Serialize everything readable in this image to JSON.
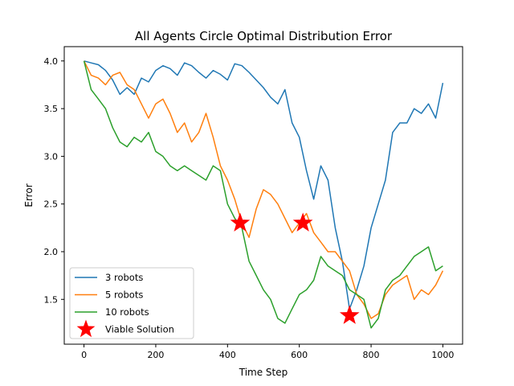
{
  "chart_data": {
    "type": "line",
    "title": "All Agents Circle Optimal Distribution Error",
    "xlabel": "Time Step",
    "ylabel": "Error",
    "xlim": [
      -55,
      1055
    ],
    "ylim": [
      1.03,
      4.15
    ],
    "x_ticks": [
      0,
      200,
      400,
      600,
      800,
      1000
    ],
    "y_ticks": [
      1.5,
      2.0,
      2.5,
      3.0,
      3.5,
      4.0
    ],
    "x_tick_labels": [
      "0",
      "200",
      "400",
      "600",
      "800",
      "1000"
    ],
    "y_tick_labels": [
      "1.5",
      "2.0",
      "2.5",
      "3.0",
      "3.5",
      "4.0"
    ],
    "grid": false,
    "legend_position": "lower-left",
    "series": [
      {
        "name": "3 robots",
        "color": "#1f77b4",
        "x": [
          0,
          20,
          40,
          60,
          80,
          100,
          120,
          140,
          160,
          180,
          200,
          220,
          240,
          260,
          280,
          300,
          320,
          340,
          360,
          380,
          400,
          420,
          440,
          460,
          480,
          500,
          520,
          540,
          560,
          580,
          600,
          620,
          640,
          660,
          680,
          700,
          720,
          740,
          760,
          780,
          800,
          820,
          840,
          860,
          880,
          900,
          920,
          940,
          960,
          980,
          1000
        ],
        "y": [
          4.0,
          3.98,
          3.96,
          3.9,
          3.8,
          3.65,
          3.72,
          3.65,
          3.82,
          3.78,
          3.9,
          3.95,
          3.92,
          3.85,
          3.98,
          3.95,
          3.88,
          3.82,
          3.9,
          3.86,
          3.8,
          3.97,
          3.95,
          3.88,
          3.8,
          3.72,
          3.62,
          3.55,
          3.7,
          3.35,
          3.2,
          2.85,
          2.55,
          2.9,
          2.75,
          2.25,
          1.9,
          1.4,
          1.6,
          1.85,
          2.25,
          2.5,
          2.75,
          3.25,
          3.35,
          3.35,
          3.5,
          3.45,
          3.55,
          3.4,
          3.77
        ]
      },
      {
        "name": "5 robots",
        "color": "#ff7f0e",
        "x": [
          0,
          20,
          40,
          60,
          80,
          100,
          120,
          140,
          160,
          180,
          200,
          220,
          240,
          260,
          280,
          300,
          320,
          340,
          360,
          380,
          400,
          420,
          440,
          460,
          480,
          500,
          520,
          540,
          560,
          580,
          600,
          620,
          640,
          660,
          680,
          700,
          720,
          740,
          760,
          780,
          800,
          820,
          840,
          860,
          880,
          900,
          920,
          940,
          960,
          980,
          1000
        ],
        "y": [
          4.0,
          3.85,
          3.82,
          3.75,
          3.85,
          3.88,
          3.75,
          3.7,
          3.55,
          3.4,
          3.55,
          3.6,
          3.45,
          3.25,
          3.35,
          3.15,
          3.25,
          3.45,
          3.2,
          2.9,
          2.75,
          2.55,
          2.3,
          2.15,
          2.45,
          2.65,
          2.6,
          2.5,
          2.35,
          2.2,
          2.3,
          2.4,
          2.2,
          2.1,
          2.0,
          2.0,
          1.9,
          1.8,
          1.55,
          1.45,
          1.3,
          1.35,
          1.55,
          1.65,
          1.7,
          1.75,
          1.5,
          1.6,
          1.55,
          1.65,
          1.8
        ]
      },
      {
        "name": "10 robots",
        "color": "#2ca02c",
        "x": [
          0,
          20,
          40,
          60,
          80,
          100,
          120,
          140,
          160,
          180,
          200,
          220,
          240,
          260,
          280,
          300,
          320,
          340,
          360,
          380,
          400,
          420,
          440,
          460,
          480,
          500,
          520,
          540,
          560,
          580,
          600,
          620,
          640,
          660,
          680,
          700,
          720,
          740,
          760,
          780,
          800,
          820,
          840,
          860,
          880,
          900,
          920,
          940,
          960,
          980,
          1000
        ],
        "y": [
          4.0,
          3.7,
          3.6,
          3.5,
          3.3,
          3.15,
          3.1,
          3.2,
          3.15,
          3.25,
          3.05,
          3.0,
          2.9,
          2.85,
          2.9,
          2.85,
          2.8,
          2.75,
          2.9,
          2.85,
          2.5,
          2.35,
          2.25,
          1.9,
          1.75,
          1.6,
          1.5,
          1.3,
          1.25,
          1.4,
          1.55,
          1.6,
          1.7,
          1.95,
          1.85,
          1.8,
          1.75,
          1.6,
          1.55,
          1.5,
          1.2,
          1.3,
          1.6,
          1.7,
          1.75,
          1.85,
          1.95,
          2.0,
          2.05,
          1.8,
          1.85
        ]
      }
    ],
    "markers": {
      "name": "Viable Solution",
      "color": "#ff0000",
      "shape": "star",
      "x": [
        435,
        610,
        740
      ],
      "y": [
        2.3,
        2.3,
        1.33
      ]
    }
  }
}
